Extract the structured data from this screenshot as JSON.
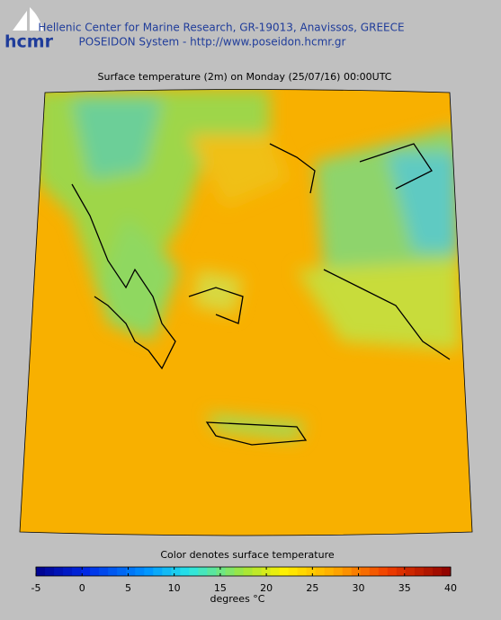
{
  "header": {
    "logo": "hcmr",
    "line1": "Hellenic Center for Marine Research, GR-19013, Anavissos, GREECE",
    "line2": "POSEIDON System - http://www.poseidon.hcmr.gr"
  },
  "title": "Surface temperature (2m) on Monday (25/07/16) 00:00UTC",
  "colorbar": {
    "label": "Color denotes surface temperature",
    "range": [
      -5,
      40
    ],
    "ticks": [
      -5,
      0,
      5,
      10,
      15,
      20,
      25,
      30,
      35,
      40
    ],
    "unit": "degrees °C"
  }
}
